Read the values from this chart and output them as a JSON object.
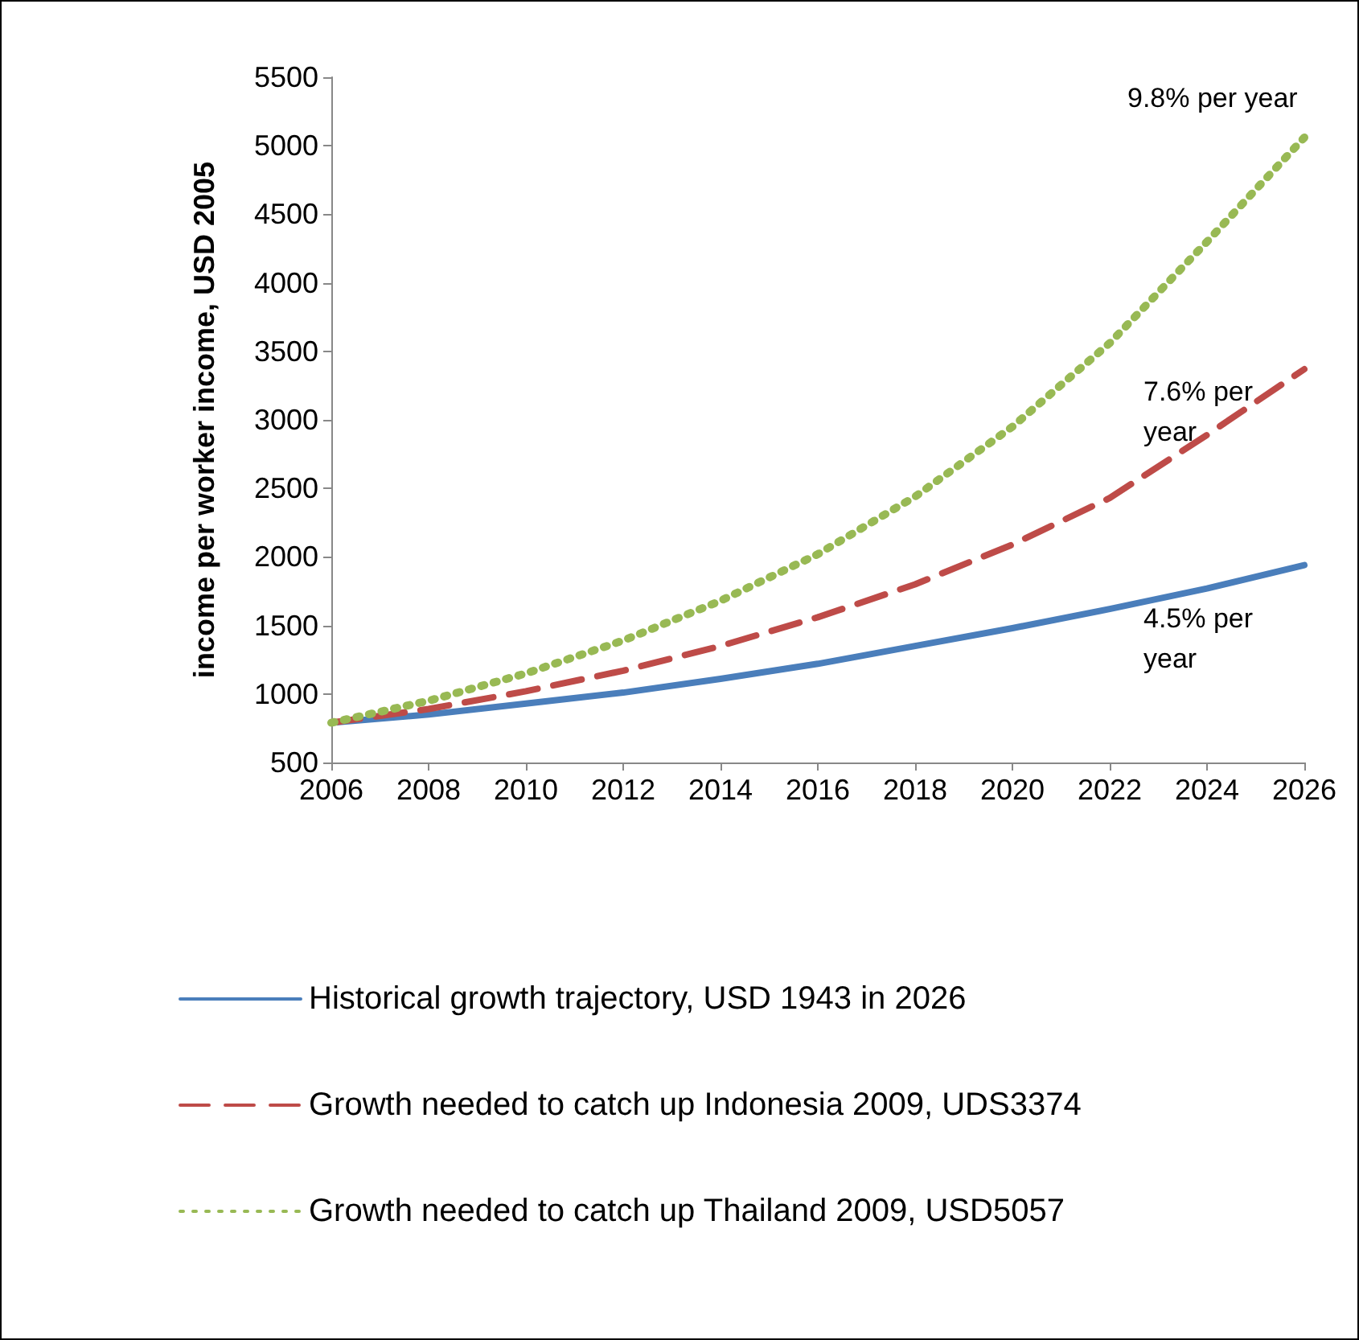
{
  "chart_data": {
    "type": "line",
    "ylabel": "income per worker income, USD 2005",
    "x": [
      2006,
      2008,
      2010,
      2012,
      2014,
      2016,
      2018,
      2020,
      2022,
      2024,
      2026
    ],
    "series": [
      {
        "name": "Historical growth trajectory, USD 1943 in 2026",
        "color": "#4a7ebb",
        "line_style": "solid",
        "values": [
          790,
          850,
          930,
          1010,
          1110,
          1220,
          1350,
          1480,
          1620,
          1770,
          1940
        ]
      },
      {
        "name": "Growth needed to catch up Indonesia 2009, UDS3374",
        "color": "#be4b48",
        "line_style": "dashed",
        "values": [
          790,
          890,
          1020,
          1170,
          1350,
          1560,
          1800,
          2090,
          2430,
          2890,
          3370
        ]
      },
      {
        "name": "Growth needed to catch up Thailand 2009, USD5057",
        "color": "#98b954",
        "line_style": "dotted",
        "values": [
          790,
          950,
          1150,
          1390,
          1680,
          2020,
          2440,
          2950,
          3560,
          4300,
          5060
        ]
      }
    ],
    "xlim": [
      2006,
      2026
    ],
    "xticks": [
      2006,
      2008,
      2010,
      2012,
      2014,
      2016,
      2018,
      2020,
      2022,
      2024,
      2026
    ],
    "ylim": [
      500,
      5500
    ],
    "yticks": [
      500,
      1000,
      1500,
      2000,
      2500,
      3000,
      3500,
      4000,
      4500,
      5000,
      5500
    ],
    "annotations": [
      "9.8% per year",
      "7.6% per year",
      "4.5% per year"
    ],
    "grid": false,
    "legend": "bottom",
    "marker": "none"
  }
}
